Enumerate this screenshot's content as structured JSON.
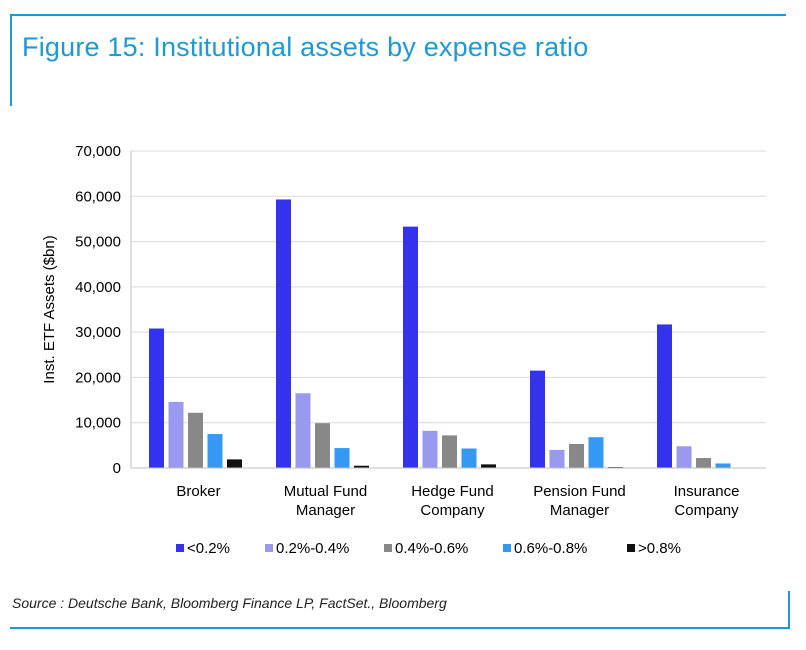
{
  "figure": {
    "title": "Figure 15: Institutional assets by expense ratio",
    "source": "Source : Deutsche Bank, Bloomberg Finance LP, FactSet., Bloomberg"
  },
  "colors": {
    "accent": "#1d9ad6",
    "series": [
      "#3333ee",
      "#9999f0",
      "#888888",
      "#3399f5",
      "#111111"
    ]
  },
  "chart_data": {
    "type": "bar",
    "title": "",
    "xlabel": "",
    "ylabel": "Inst. ETF Assets ($bn)",
    "ylim": [
      0,
      70000
    ],
    "yticks": [
      0,
      10000,
      20000,
      30000,
      40000,
      50000,
      60000,
      70000
    ],
    "ytick_labels": [
      "0",
      "10,000",
      "20,000",
      "30,000",
      "40,000",
      "50,000",
      "60,000",
      "70,000"
    ],
    "grid": true,
    "legend_position": "bottom",
    "categories": [
      [
        "Broker"
      ],
      [
        "Mutual Fund",
        "Manager"
      ],
      [
        "Hedge Fund",
        "Company"
      ],
      [
        "Pension Fund",
        "Manager"
      ],
      [
        "Insurance",
        "Company"
      ]
    ],
    "series": [
      {
        "name": "<0.2%",
        "values": [
          30800,
          59300,
          53300,
          21500,
          31700
        ]
      },
      {
        "name": "0.2%-0.4%",
        "values": [
          14600,
          16500,
          8200,
          4000,
          4800
        ]
      },
      {
        "name": "0.4%-0.6%",
        "values": [
          12200,
          9900,
          7200,
          5300,
          2200
        ]
      },
      {
        "name": "0.6%-0.8%",
        "values": [
          7500,
          4400,
          4300,
          6800,
          1000
        ]
      },
      {
        "name": ">0.8%",
        "values": [
          1900,
          500,
          800,
          200,
          100
        ]
      }
    ]
  }
}
